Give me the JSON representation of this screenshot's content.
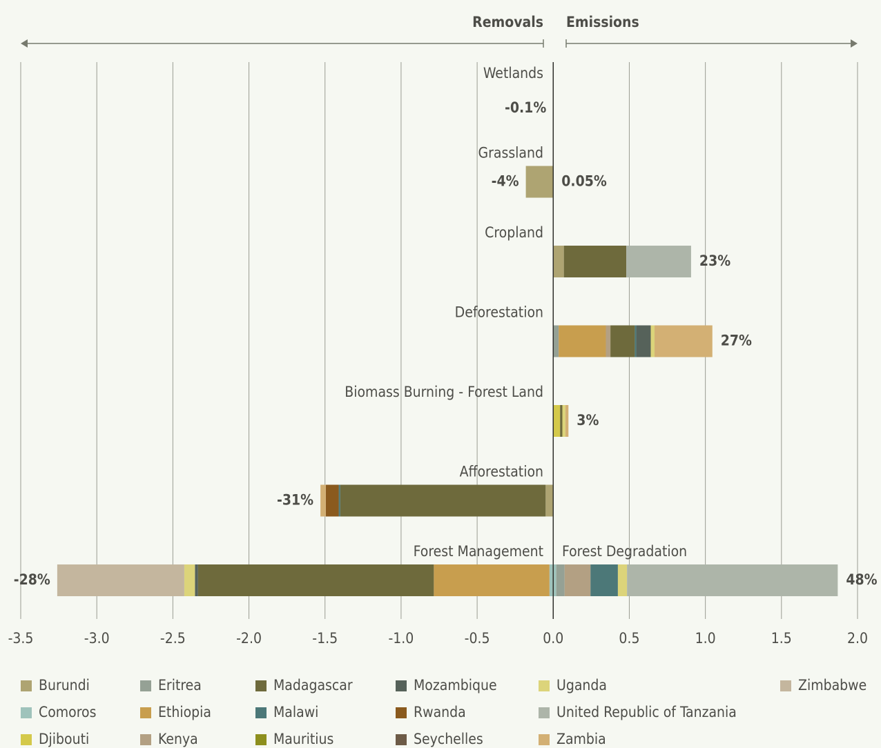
{
  "chart_data": {
    "type": "diverging-stacked-bar",
    "removals_heading": "Removals",
    "emissions_heading": "Emissions",
    "categories": [
      "Wetlands",
      "Grassland",
      "Cropland",
      "Deforestation",
      "Biomass Burning - Forest Land",
      "Afforestation",
      "Forest Management"
    ],
    "emission_categories": [
      null,
      null,
      null,
      null,
      null,
      null,
      "Forest Degradation"
    ],
    "removal_share_labels": [
      "-0.1%",
      "-4%",
      null,
      null,
      null,
      "-31%",
      "-28%"
    ],
    "emission_share_labels": [
      null,
      "0.05%",
      "23%",
      "27%",
      "3%",
      null,
      "48%"
    ],
    "xlim": [
      -3.5,
      2.0
    ],
    "xticks": [
      -3.5,
      {
        "value": -3.0,
        "label": "-3.0"
      },
      -2.5,
      {
        "value": -2.0,
        "label": "-2.0"
      },
      -1.5,
      {
        "value": -1.0,
        "label": "-1.0"
      },
      -0.5,
      {
        "value": 0,
        "label": "0.0"
      },
      0.5,
      {
        "value": 1.0,
        "label": "1.0"
      },
      1.5,
      {
        "value": 2.0,
        "label": "2.0"
      }
    ],
    "grid": true,
    "series": [
      {
        "name": "Burundi",
        "color": "#aea472",
        "removals": [
          null,
          -0.18,
          null,
          null,
          null,
          -0.05,
          null
        ],
        "values": [
          null,
          null,
          0.07,
          null,
          null,
          null,
          null
        ]
      },
      {
        "name": "Comoros",
        "color": "#9fc3bb",
        "removals": [
          null,
          null,
          null,
          null,
          null,
          null,
          -0.025
        ],
        "values": [
          null,
          null,
          null,
          null,
          null,
          null,
          0.02
        ]
      },
      {
        "name": "Djibouti",
        "color": "#d4c94a",
        "removals": [
          null,
          null,
          null,
          null,
          null,
          null,
          null
        ],
        "values": [
          null,
          null,
          null,
          null,
          0.045,
          null,
          null
        ]
      },
      {
        "name": "Eritrea",
        "color": "#95a195",
        "removals": [
          null,
          null,
          null,
          null,
          null,
          null,
          null
        ],
        "values": [
          null,
          null,
          null,
          0.036,
          null,
          null,
          0.055
        ]
      },
      {
        "name": "Ethiopia",
        "color": "#c89e4e",
        "removals": [
          null,
          null,
          null,
          null,
          null,
          null,
          -0.76
        ],
        "values": [
          null,
          null,
          null,
          0.31,
          null,
          null,
          null
        ]
      },
      {
        "name": "Kenya",
        "color": "#b3a083",
        "removals": [
          null,
          null,
          null,
          null,
          null,
          null,
          null
        ],
        "values": [
          null,
          null,
          null,
          0.03,
          null,
          null,
          0.17
        ]
      },
      {
        "name": "Madagascar",
        "color": "#6e6a3c",
        "removals": [
          null,
          null,
          null,
          null,
          null,
          -1.35,
          -1.55
        ],
        "values": [
          null,
          null,
          0.41,
          0.16,
          0.015,
          null,
          null
        ]
      },
      {
        "name": "Malawi",
        "color": "#4c7878",
        "removals": [
          null,
          null,
          null,
          null,
          null,
          -0.01,
          null
        ],
        "values": [
          null,
          null,
          null,
          0.01,
          null,
          null,
          0.18
        ]
      },
      {
        "name": "Mauritius",
        "color": "#8d8f1e",
        "removals": [
          null,
          null,
          null,
          null,
          null,
          null,
          null
        ],
        "values": [
          null,
          null,
          null,
          null,
          null,
          null,
          null
        ]
      },
      {
        "name": "Mozambique",
        "color": "#56625a",
        "removals": [
          null,
          null,
          null,
          null,
          null,
          null,
          -0.02
        ],
        "values": [
          null,
          null,
          null,
          0.095,
          null,
          null,
          null
        ]
      },
      {
        "name": "Rwanda",
        "color": "#8a5a1e",
        "removals": [
          null,
          null,
          null,
          null,
          null,
          -0.085,
          null
        ],
        "values": [
          null,
          null,
          null,
          null,
          null,
          null,
          null
        ]
      },
      {
        "name": "Seychelles",
        "color": "#6d5b47",
        "removals": [
          null,
          null,
          null,
          null,
          null,
          null,
          null
        ],
        "values": [
          null,
          null,
          null,
          null,
          null,
          null,
          null
        ]
      },
      {
        "name": "Uganda",
        "color": "#dcd47a",
        "removals": [
          null,
          null,
          null,
          null,
          null,
          null,
          -0.07
        ],
        "values": [
          null,
          null,
          null,
          0.025,
          0.02,
          null,
          0.06
        ]
      },
      {
        "name": "United Republic of Tanzania",
        "color": "#adb5a9",
        "removals": [
          null,
          null,
          null,
          null,
          null,
          null,
          null
        ],
        "values": [
          null,
          null,
          0.426,
          null,
          null,
          null,
          1.385
        ]
      },
      {
        "name": "Zambia",
        "color": "#d3b074",
        "removals": [
          null,
          null,
          null,
          null,
          null,
          -0.035,
          null
        ],
        "values": [
          null,
          null,
          null,
          0.38,
          0.02,
          null,
          null
        ]
      },
      {
        "name": "Zimbabwe",
        "color": "#c4b69e",
        "removals": [
          null,
          null,
          null,
          null,
          null,
          null,
          -0.835
        ],
        "values": [
          null,
          null,
          null,
          null,
          null,
          null,
          null
        ]
      }
    ]
  }
}
